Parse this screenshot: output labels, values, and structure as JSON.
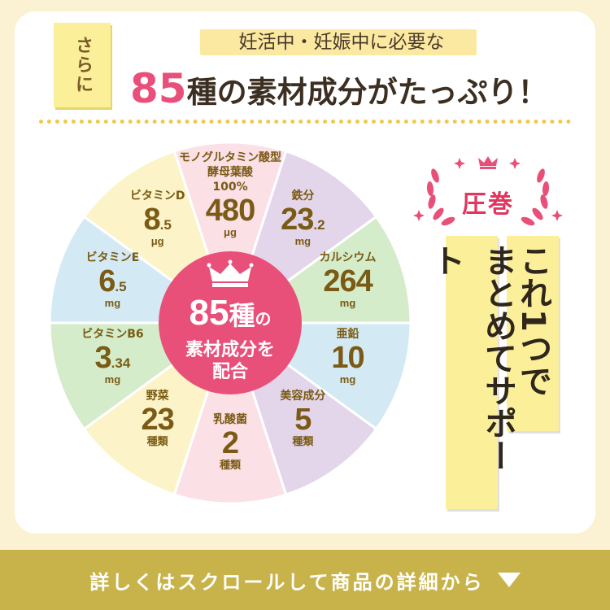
{
  "tag": "さらに",
  "subhead": "妊活中・妊娠中に必要な",
  "headline": {
    "num": "85",
    "rest": "種の素材成分がたっぷり！"
  },
  "center": {
    "num": "85",
    "unit": "種",
    "particle": "の",
    "line2": "素材成分を",
    "line3": "配合"
  },
  "nutrients": [
    {
      "name": "モノグルタミン酸型",
      "name2": "酵母葉酸",
      "name3": "100%",
      "big": "480",
      "small": "",
      "unit": "μg",
      "color": "#fbe0e6"
    },
    {
      "name": "鉄分",
      "big": "23",
      "small": ".2",
      "unit": "mg",
      "color": "#e3d6ea"
    },
    {
      "name": "カルシウム",
      "big": "264",
      "small": "",
      "unit": "mg",
      "color": "#d4ecc9"
    },
    {
      "name": "亜鉛",
      "big": "10",
      "small": "",
      "unit": "mg",
      "color": "#d3eaf4"
    },
    {
      "name": "美容成分",
      "big": "5",
      "small": "",
      "unit": "種類",
      "color": "#e3d6ea"
    },
    {
      "name": "乳酸菌",
      "big": "2",
      "small": "",
      "unit": "種類",
      "color": "#fbe0e6"
    },
    {
      "name": "野菜",
      "big": "23",
      "small": "",
      "unit": "種類",
      "color": "#fcf4c8"
    },
    {
      "name": "ビタミンB6",
      "big": "3",
      "small": ".34",
      "unit": "mg",
      "color": "#d4ecc9"
    },
    {
      "name": "ビタミンE",
      "big": "6",
      "small": ".5",
      "unit": "mg",
      "color": "#d3eaf4"
    },
    {
      "name": "ビタミンD",
      "big": "8",
      "small": ".5",
      "unit": "μg",
      "color": "#fcf4c8"
    }
  ],
  "award": "圧巻",
  "vertical": {
    "col1": "これ1つで",
    "col2": "まとめてサポート"
  },
  "footer": "詳しくはスクロールして商品の詳細から",
  "colors": {
    "pink": "#e8507a",
    "gold": "#7a5a14",
    "yellow": "#fbef9a",
    "footer": "#c8b34a"
  }
}
